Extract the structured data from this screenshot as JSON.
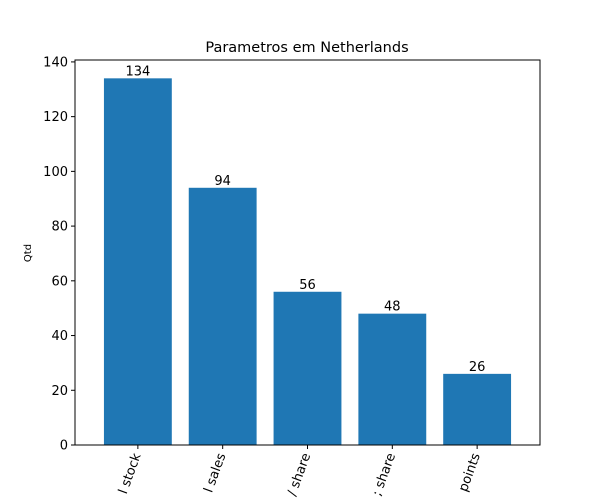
{
  "chart_data": {
    "type": "bar",
    "title": "Parametros em Netherlands",
    "xlabel": "",
    "ylabel": "Qtd",
    "categories": [
      "l stock",
      "l sales",
      "/ share",
      "; share",
      "points"
    ],
    "values": [
      134,
      94,
      56,
      48,
      26
    ],
    "ylim": [
      0,
      140.7
    ],
    "yticks": [
      0,
      20,
      40,
      60,
      80,
      100,
      120,
      140
    ],
    "bar_color": "#1f77b4",
    "grid": false,
    "legend": "none",
    "x_tick_rotation_deg": -70
  }
}
